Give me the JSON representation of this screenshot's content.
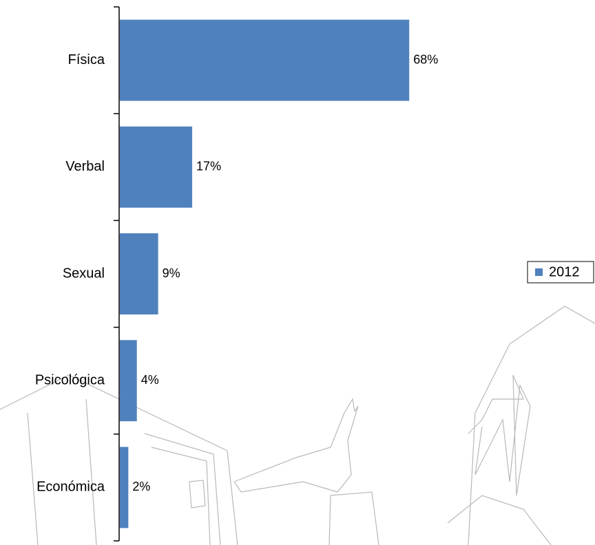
{
  "chart_data": {
    "type": "bar",
    "orientation": "horizontal",
    "categories": [
      "Física",
      "Verbal",
      "Sexual",
      "Psicológica",
      "Económica"
    ],
    "series": [
      {
        "name": "2012",
        "color": "#4f81bd",
        "values": [
          68,
          17,
          9,
          4,
          2
        ],
        "value_labels": [
          "68%",
          "17%",
          "9%",
          "4%",
          "2%"
        ]
      }
    ],
    "legend": "right"
  }
}
